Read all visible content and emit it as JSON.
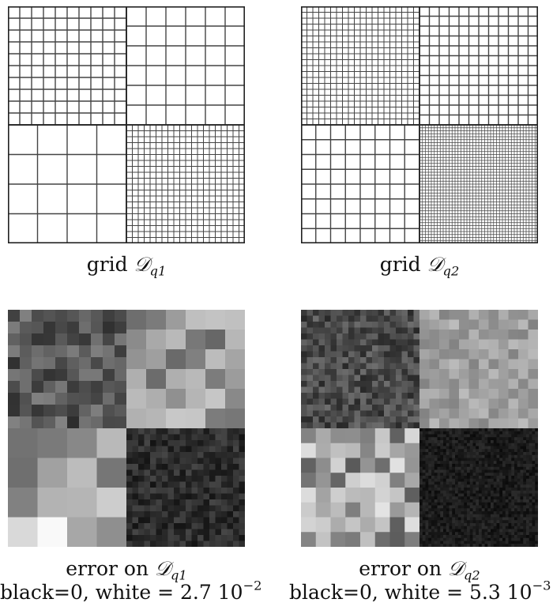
{
  "panels": {
    "grid_q1": {
      "caption_prefix": "grid ",
      "symbol": "𝒟",
      "subscript": "q1",
      "quadrant_cells": {
        "top_left": 10,
        "top_right": 6,
        "bottom_left": 4,
        "bottom_right": 20
      }
    },
    "grid_q2": {
      "caption_prefix": "grid ",
      "symbol": "𝒟",
      "subscript": "q2",
      "quadrant_cells": {
        "top_left": 20,
        "top_right": 12,
        "bottom_left": 8,
        "bottom_right": 40
      }
    },
    "error_q1": {
      "caption_prefix": "error on ",
      "symbol": "𝒟",
      "subscript": "q1",
      "scale_text": "black=0, white = 2.7 10",
      "scale_exponent": "−2"
    },
    "error_q2": {
      "caption_prefix": "error on ",
      "symbol": "𝒟",
      "subscript": "q2",
      "scale_text": "black=0, white = 5.3 10",
      "scale_exponent": "−3"
    }
  }
}
